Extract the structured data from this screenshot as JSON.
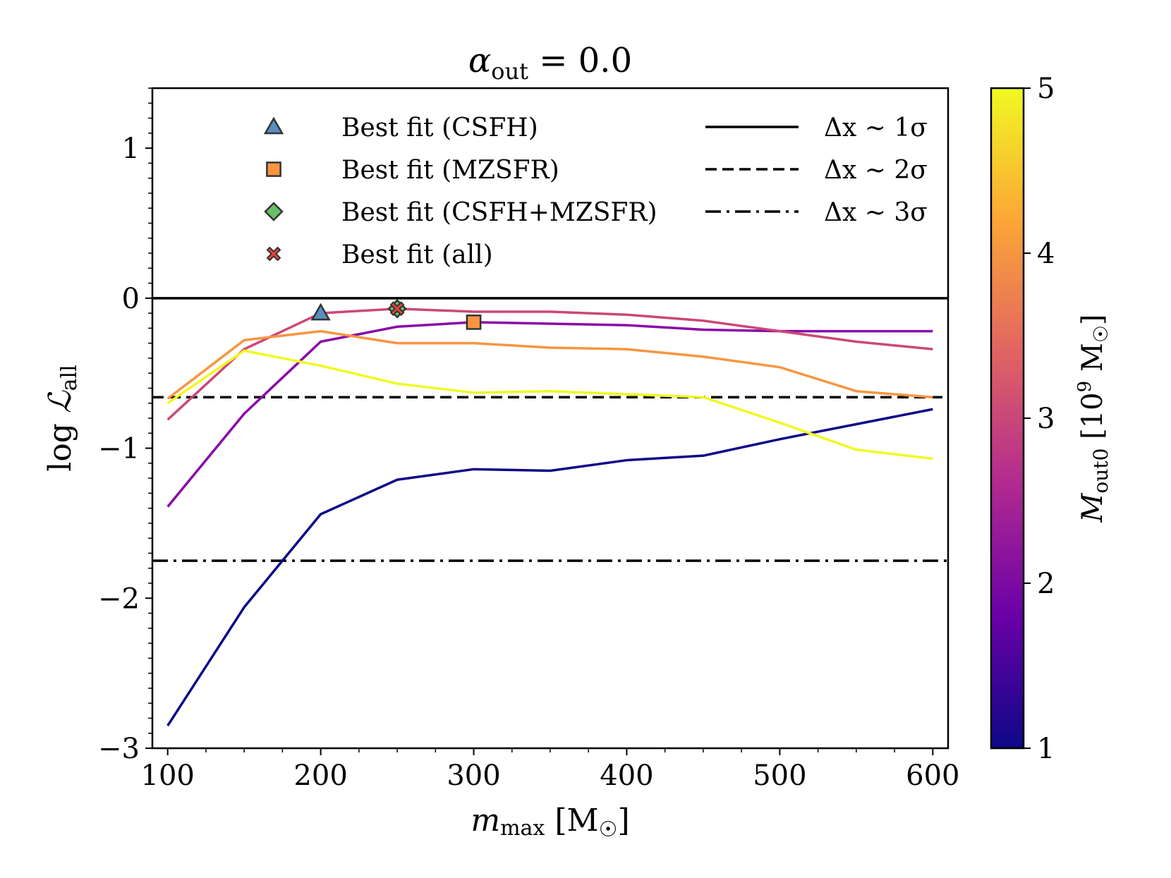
{
  "chart_data": {
    "type": "line",
    "title": {
      "symbol": "α",
      "sub": "out",
      "rest": " = 0.0"
    },
    "xlabel": {
      "symbol": "m",
      "sub": "max",
      "rest": " [M",
      "suffix": "]"
    },
    "ylabel": {
      "prefix": "log ",
      "symbol": "ℒ",
      "sub": "all"
    },
    "xlim": [
      90,
      610
    ],
    "ylim": [
      -3,
      1.4
    ],
    "x_ticks": [
      100,
      200,
      300,
      400,
      500,
      600
    ],
    "x_tick_labels": [
      "100",
      "200",
      "300",
      "400",
      "500",
      "600"
    ],
    "y_ticks": [
      -3,
      -2,
      -1,
      0,
      1
    ],
    "y_tick_labels": [
      "−3",
      "−2",
      "−1",
      "0",
      "1"
    ],
    "x": [
      100,
      150,
      200,
      250,
      300,
      350,
      400,
      450,
      500,
      550,
      600
    ],
    "series": [
      {
        "name": "M_out0 = 1",
        "color": "#0d0887",
        "values": [
          -2.85,
          -2.06,
          -1.44,
          -1.21,
          -1.14,
          -1.15,
          -1.08,
          -1.05,
          -0.94,
          -0.84,
          -0.74
        ]
      },
      {
        "name": "M_out0 = 2",
        "color": "#8a0ba6",
        "values": [
          -1.39,
          -0.77,
          -0.29,
          -0.19,
          -0.16,
          -0.17,
          -0.18,
          -0.21,
          -0.22,
          -0.22,
          -0.22
        ]
      },
      {
        "name": "M_out0 = 3",
        "color": "#cc4778",
        "values": [
          -0.81,
          -0.34,
          -0.1,
          -0.07,
          -0.09,
          -0.09,
          -0.11,
          -0.15,
          -0.22,
          -0.29,
          -0.34
        ]
      },
      {
        "name": "M_out0 = 4",
        "color": "#f89540",
        "values": [
          -0.67,
          -0.28,
          -0.22,
          -0.3,
          -0.3,
          -0.33,
          -0.34,
          -0.39,
          -0.46,
          -0.62,
          -0.66
        ]
      },
      {
        "name": "M_out0 = 5",
        "color": "#f0f921",
        "values": [
          -0.7,
          -0.35,
          -0.45,
          -0.57,
          -0.63,
          -0.62,
          -0.64,
          -0.66,
          -0.83,
          -1.01,
          -1.07
        ]
      }
    ],
    "hlines": [
      {
        "y": 0.0,
        "style": "solid",
        "label_symbol": "Δx ~ 1σ"
      },
      {
        "y": -0.66,
        "style": "dashed",
        "label_symbol": "Δx ~ 2σ"
      },
      {
        "y": -1.75,
        "style": "dashdot",
        "label_symbol": "Δx ~ 3σ"
      }
    ],
    "markers": [
      {
        "label": "Best fit (CSFH)",
        "shape": "triangle",
        "x": 200,
        "y": -0.1,
        "color": "#5b8ec2"
      },
      {
        "label": "Best fit (MZSFR)",
        "shape": "square",
        "x": 300,
        "y": -0.16,
        "color": "#f89540"
      },
      {
        "label": "Best fit (CSFH+MZSFR)",
        "shape": "diamond",
        "x": 250,
        "y": -0.07,
        "color": "#6abf69"
      },
      {
        "label": "Best fit (all)",
        "shape": "x",
        "x": 250,
        "y": -0.07,
        "color": "#e8443a"
      }
    ],
    "legend_position": "top",
    "colorbar": {
      "label": {
        "symbol": "M",
        "sub": "out0",
        "rest": " [10",
        "sup": "9",
        "unit": " M",
        "suffix": "]"
      },
      "range": [
        1,
        5
      ],
      "ticks": [
        1,
        2,
        3,
        4,
        5
      ],
      "tick_labels": [
        "1",
        "2",
        "3",
        "4",
        "5"
      ],
      "colormap": "plasma",
      "stops": [
        "#0d0887",
        "#6a00a8",
        "#b12a90",
        "#e16462",
        "#fca636",
        "#f0f921"
      ]
    }
  }
}
